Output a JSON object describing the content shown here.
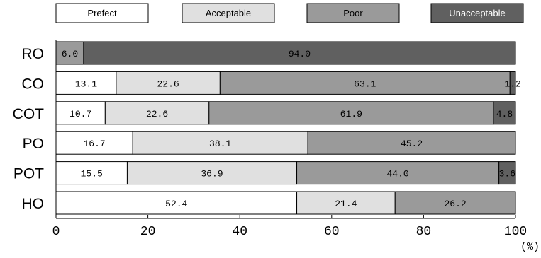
{
  "chart_data": {
    "type": "bar",
    "orientation": "horizontal",
    "stacked": true,
    "categories": [
      "RO",
      "CO",
      "COT",
      "PO",
      "POT",
      "HO"
    ],
    "series": [
      {
        "name": "Prefect",
        "values": [
          0,
          13.1,
          10.7,
          16.7,
          15.5,
          52.4
        ],
        "color": "#ffffff"
      },
      {
        "name": "Acceptable",
        "values": [
          0,
          22.6,
          22.6,
          38.1,
          36.9,
          21.4
        ],
        "color": "#e0e0e0"
      },
      {
        "name": "Poor",
        "values": [
          6.0,
          63.1,
          61.9,
          45.2,
          44.0,
          26.2
        ],
        "color": "#9a9a9a"
      },
      {
        "name": "Unacceptable",
        "values": [
          94.0,
          1.2,
          4.8,
          0,
          3.6,
          0
        ],
        "color": "#606060"
      }
    ],
    "data_labels": [
      [
        "",
        "",
        "6.0",
        "94.0"
      ],
      [
        "13.1",
        "22.6",
        "63.1",
        "1.2"
      ],
      [
        "10.7",
        "22.6",
        "61.9",
        "4.8"
      ],
      [
        "16.7",
        "38.1",
        "45.2",
        ""
      ],
      [
        "15.5",
        "36.9",
        "44.0",
        "3.6"
      ],
      [
        "52.4",
        "21.4",
        "26.2",
        ""
      ]
    ],
    "xlim": [
      0,
      100
    ],
    "xticks": [
      "0",
      "20",
      "40",
      "60",
      "80",
      "100"
    ],
    "xunit": "(%)",
    "legend_position": "top",
    "grid": false
  }
}
